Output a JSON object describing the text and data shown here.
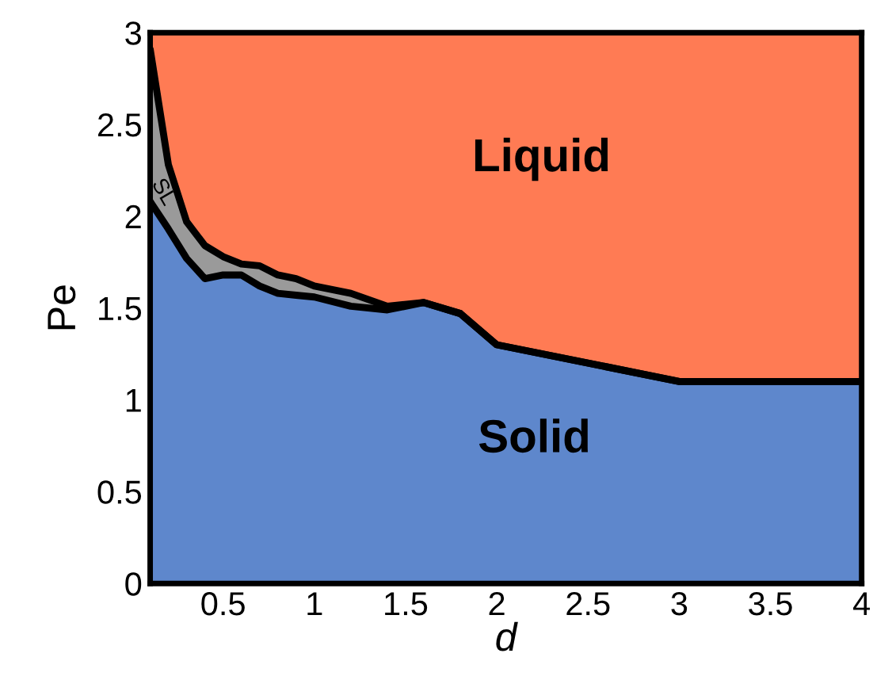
{
  "chart_data": {
    "type": "area",
    "stacked": true,
    "xlabel": "d",
    "ylabel": "Pe",
    "x": [
      0.1,
      0.2,
      0.3,
      0.4,
      0.5,
      0.6,
      0.7,
      0.8,
      0.9,
      1.0,
      1.2,
      1.4,
      1.6,
      1.8,
      2.0,
      3.0,
      4.0
    ],
    "series": [
      {
        "color": "#5e87cc",
        "values": [
          2.08,
          1.93,
          1.77,
          1.66,
          1.68,
          1.68,
          1.62,
          1.58,
          1.57,
          1.56,
          1.51,
          1.49,
          1.53,
          1.47,
          1.3,
          1.1,
          1.1
        ]
      },
      {
        "color": "#9a9a9a",
        "values": [
          0.83,
          0.35,
          0.2,
          0.18,
          0.1,
          0.06,
          0.11,
          0.1,
          0.09,
          0.06,
          0.07,
          0.02,
          0,
          0,
          0,
          0,
          0
        ]
      },
      {
        "color": "#ff7b54",
        "values": [
          0.09,
          0.72,
          1.03,
          1.16,
          1.22,
          1.26,
          1.27,
          1.32,
          1.34,
          1.38,
          1.42,
          1.49,
          1.47,
          1.53,
          1.7,
          1.9,
          1.9
        ]
      }
    ],
    "xlim": [
      0.1,
      4
    ],
    "ylim": [
      0,
      3
    ],
    "xticks": [
      0.5,
      1,
      1.5,
      2,
      2.5,
      3,
      3.5,
      4
    ],
    "yticks": [
      0,
      0.5,
      1,
      1.5,
      2,
      2.5,
      3
    ],
    "legend": false,
    "annotations": [
      "Liquid",
      "Solid",
      "SL"
    ]
  }
}
